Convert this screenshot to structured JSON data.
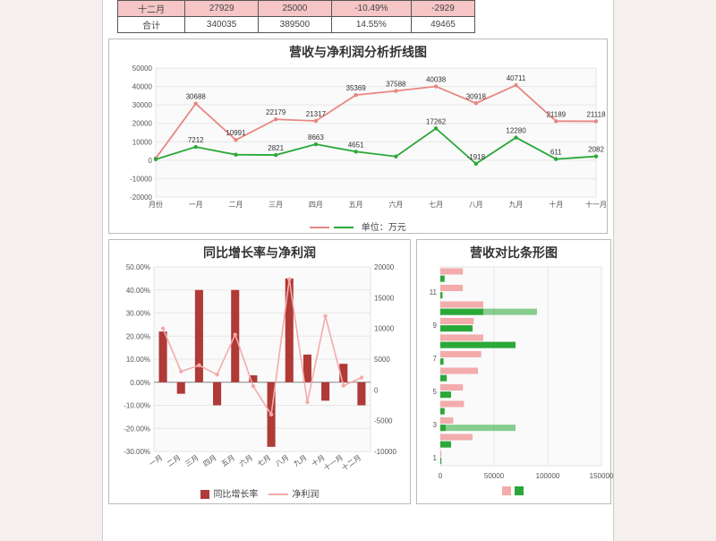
{
  "table": {
    "rows": [
      {
        "hl": true,
        "cells": [
          "十二月",
          "27929",
          "25000",
          "-10.49%",
          "-2929"
        ]
      },
      {
        "hl": false,
        "cells": [
          "合计",
          "340035",
          "389500",
          "14.55%",
          "49465"
        ]
      }
    ]
  },
  "colors": {
    "red": "#e88782",
    "green": "#2aa838",
    "barDark": "#b03a36",
    "barLight": "#f3abab",
    "pink": "#f3abab",
    "grid": "#e6e6e6",
    "plotBg": "#fafafa",
    "axis": "#555"
  },
  "chart1": {
    "title": "营收与净利润分析折线图",
    "legend_label": "单位：万元",
    "x_labels": [
      "月份",
      "一月",
      "二月",
      "三月",
      "四月",
      "五月",
      "六月",
      "七月",
      "八月",
      "九月",
      "十月",
      "十一月"
    ],
    "y_ticks": [
      -20000,
      -10000,
      0,
      10000,
      20000,
      30000,
      40000,
      50000
    ],
    "ylim": [
      -20000,
      50000
    ],
    "series_red": [
      1000,
      30688,
      10991,
      22179,
      21317,
      35369,
      37588,
      40038,
      30918,
      40711,
      21189,
      21118
    ],
    "series_green": [
      500,
      7212,
      3000,
      2821,
      8663,
      4651,
      2000,
      17262,
      -1918,
      12280,
      611,
      2082
    ],
    "labels_top": [
      "",
      "30688",
      "10991",
      "22179",
      "21317",
      "35369",
      "37588",
      "40038",
      "30918",
      "40711",
      "21189",
      "21118"
    ],
    "labels_bot": [
      "",
      "7212",
      "",
      "2821",
      "8663",
      "4651",
      "",
      "17262",
      "-1918",
      "12280",
      "611",
      "2082"
    ]
  },
  "chart2": {
    "title": "同比增长率与净利润",
    "y1_ticks_pct": [
      -30,
      -20,
      -10,
      0,
      10,
      20,
      30,
      40,
      50
    ],
    "y1_lim": [
      -30,
      50
    ],
    "y2_ticks": [
      -10000,
      -5000,
      0,
      5000,
      10000,
      15000,
      20000
    ],
    "y2_lim": [
      -10000,
      20000
    ],
    "x_labels": [
      "一月",
      "二月",
      "三月",
      "四月",
      "五月",
      "六月",
      "七月",
      "八月",
      "九月",
      "十月",
      "十一月",
      "十二月"
    ],
    "bars_pct": [
      22,
      -5,
      40,
      -10,
      40,
      3,
      -28,
      45,
      12,
      -8,
      8,
      -10
    ],
    "line_vals": [
      10000,
      3000,
      4000,
      2500,
      9000,
      600,
      -4000,
      18000,
      -2000,
      12000,
      700,
      2000
    ],
    "legend": {
      "bar": "同比增长率",
      "line": "净利润"
    }
  },
  "chart3": {
    "title": "营收对比条形图",
    "y_labels": [
      "1",
      "3",
      "5",
      "7",
      "9",
      "11"
    ],
    "x_ticks": [
      0,
      50000,
      100000,
      150000
    ],
    "xlim": [
      0,
      150000
    ],
    "rows": [
      {
        "pink": 1000,
        "green": 1000
      },
      {
        "pink": 30000,
        "green": 10000
      },
      {
        "pink": 12000,
        "green": 5000,
        "green2": 70000
      },
      {
        "pink": 22000,
        "green": 4000
      },
      {
        "pink": 21000,
        "green": 10000
      },
      {
        "pink": 35000,
        "green": 6000
      },
      {
        "pink": 38000,
        "green": 3000
      },
      {
        "pink": 40000,
        "green": 70000
      },
      {
        "pink": 31000,
        "green": 30000
      },
      {
        "pink": 40000,
        "green": 40000,
        "green2": 90000
      },
      {
        "pink": 21000,
        "green": 2000
      },
      {
        "pink": 21000,
        "green": 4000
      }
    ]
  }
}
